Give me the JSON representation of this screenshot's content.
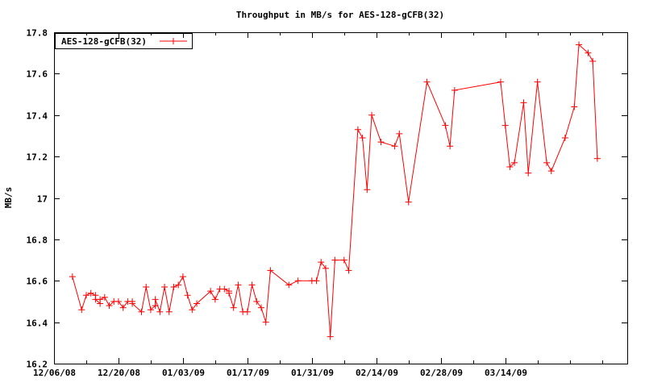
{
  "window": {
    "background": "#ffffff"
  },
  "chart_data": {
    "type": "line",
    "title": "Throughput in MB/s for AES-128-gCFB(32)",
    "xlabel": "",
    "ylabel": "MB/s",
    "grid": false,
    "legend_position": "top-left",
    "axis_color": "#000000",
    "ylim": [
      16.2,
      17.8
    ],
    "yticks": [
      {
        "v": 16.2,
        "label": "16.2"
      },
      {
        "v": 16.4,
        "label": "16.4"
      },
      {
        "v": 16.6,
        "label": "16.6"
      },
      {
        "v": 16.8,
        "label": "16.8"
      },
      {
        "v": 17.0,
        "label": "17"
      },
      {
        "v": 17.2,
        "label": "17.2"
      },
      {
        "v": 17.4,
        "label": "17.4"
      },
      {
        "v": 17.6,
        "label": "17.6"
      },
      {
        "v": 17.8,
        "label": "17.8"
      }
    ],
    "x_axis": {
      "start_date": "12/06/08",
      "total_days": 124.5,
      "major_ticks": [
        {
          "day": 0,
          "label": "12/06/08"
        },
        {
          "day": 14,
          "label": "12/20/08"
        },
        {
          "day": 28,
          "label": "01/03/09"
        },
        {
          "day": 42,
          "label": "01/17/09"
        },
        {
          "day": 56,
          "label": "01/31/09"
        },
        {
          "day": 70,
          "label": "02/14/09"
        },
        {
          "day": 84,
          "label": "02/28/09"
        },
        {
          "day": 98,
          "label": "03/14/09"
        }
      ],
      "minor_tick_days": [
        7,
        21,
        35,
        49,
        63,
        77,
        91,
        105,
        112,
        119
      ]
    },
    "series": [
      {
        "name": "AES-128-gCFB(32)",
        "color": "#ff0000",
        "marker": "plus",
        "points": [
          [
            "12/10/08",
            16.62
          ],
          [
            "12/12/08",
            16.46
          ],
          [
            "12/13/08",
            16.53
          ],
          [
            "12/14/08",
            16.54
          ],
          [
            "12/15/08",
            16.53
          ],
          [
            "12/15/08",
            16.51
          ],
          [
            "12/16/08",
            16.49
          ],
          [
            "12/16/08",
            16.51
          ],
          [
            "12/17/08",
            16.52
          ],
          [
            "12/18/08",
            16.48
          ],
          [
            "12/19/08",
            16.5
          ],
          [
            "12/20/08",
            16.5
          ],
          [
            "12/21/08",
            16.47
          ],
          [
            "12/22/08",
            16.5
          ],
          [
            "12/23/08",
            16.5
          ],
          [
            "12/23/08",
            16.49
          ],
          [
            "12/25/08",
            16.45
          ],
          [
            "12/26/08",
            16.57
          ],
          [
            "12/27/08",
            16.46
          ],
          [
            "12/28/08",
            16.48
          ],
          [
            "12/28/08",
            16.51
          ],
          [
            "12/29/08",
            16.45
          ],
          [
            "12/30/08",
            16.57
          ],
          [
            "12/31/08",
            16.45
          ],
          [
            "01/01/09",
            16.57
          ],
          [
            "01/02/09",
            16.58
          ],
          [
            "01/03/09",
            16.62
          ],
          [
            "01/04/09",
            16.53
          ],
          [
            "01/05/09",
            16.46
          ],
          [
            "01/06/09",
            16.49
          ],
          [
            "01/09/09",
            16.55
          ],
          [
            "01/10/09",
            16.51
          ],
          [
            "01/11/09",
            16.56
          ],
          [
            "01/12/09",
            16.56
          ],
          [
            "01/13/09",
            16.55
          ],
          [
            "01/13/09",
            16.54
          ],
          [
            "01/14/09",
            16.47
          ],
          [
            "01/15/09",
            16.58
          ],
          [
            "01/16/09",
            16.45
          ],
          [
            "01/17/09",
            16.45
          ],
          [
            "01/18/09",
            16.58
          ],
          [
            "01/19/09",
            16.5
          ],
          [
            "01/20/09",
            16.47
          ],
          [
            "01/21/09",
            16.4
          ],
          [
            "01/22/09",
            16.65
          ],
          [
            "01/26/09",
            16.58
          ],
          [
            "01/28/09",
            16.6
          ],
          [
            "01/31/09",
            16.6
          ],
          [
            "02/01/09",
            16.6
          ],
          [
            "02/02/09",
            16.69
          ],
          [
            "02/03/09",
            16.66
          ],
          [
            "02/04/09",
            16.33
          ],
          [
            "02/05/09",
            16.7
          ],
          [
            "02/07/09",
            16.7
          ],
          [
            "02/08/09",
            16.65
          ],
          [
            "02/10/09",
            17.33
          ],
          [
            "02/11/09",
            17.29
          ],
          [
            "02/12/09",
            17.04
          ],
          [
            "02/13/09",
            17.4
          ],
          [
            "02/15/09",
            17.27
          ],
          [
            "02/18/09",
            17.25
          ],
          [
            "02/19/09",
            17.31
          ],
          [
            "02/21/09",
            16.98
          ],
          [
            "02/25/09",
            17.56
          ],
          [
            "03/01/09",
            17.35
          ],
          [
            "03/02/09",
            17.25
          ],
          [
            "03/03/09",
            17.52
          ],
          [
            "03/13/09",
            17.56
          ],
          [
            "03/14/09",
            17.35
          ],
          [
            "03/15/09",
            17.15
          ],
          [
            "03/16/09",
            17.17
          ],
          [
            "03/18/09",
            17.46
          ],
          [
            "03/19/09",
            17.12
          ],
          [
            "03/21/09",
            17.56
          ],
          [
            "03/23/09",
            17.17
          ],
          [
            "03/24/09",
            17.13
          ],
          [
            "03/27/09",
            17.29
          ],
          [
            "03/29/09",
            17.44
          ],
          [
            "03/30/09",
            17.74
          ],
          [
            "04/01/09",
            17.7
          ],
          [
            "04/02/09",
            17.66
          ],
          [
            "04/03/09",
            17.19
          ]
        ]
      }
    ]
  }
}
